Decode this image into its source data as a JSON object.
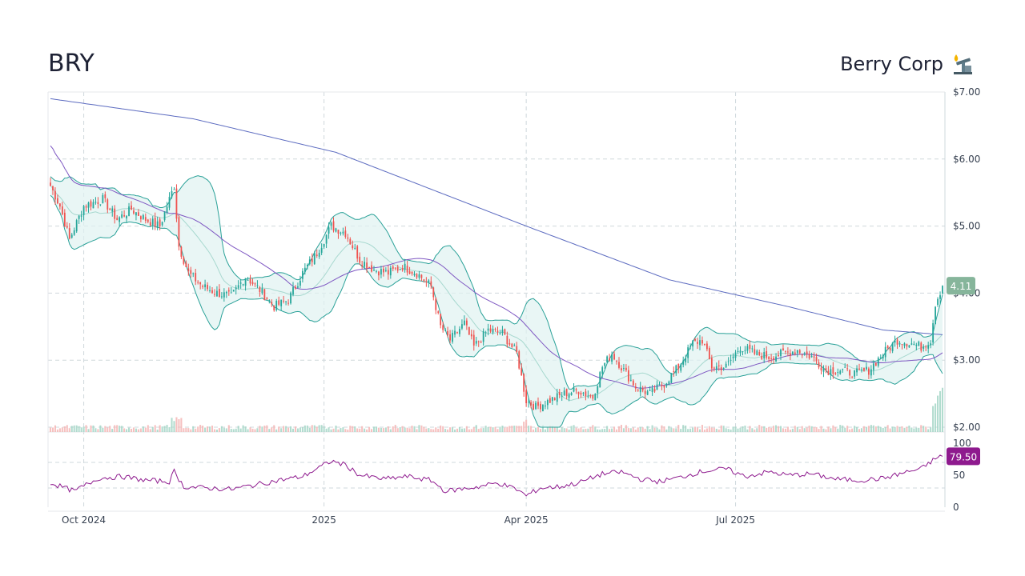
{
  "header": {
    "ticker": "BRY",
    "company": "Berry Corp",
    "company_icon": "oil-pump-icon"
  },
  "colors": {
    "up": "#26a69a",
    "down": "#ef5350",
    "band_line": "#2aa198",
    "band_fill": "#e0f2f1",
    "ma_fast": "#7e57c2",
    "ma_slow": "#5c6bc0",
    "rsi": "#8e1a8e",
    "grid": "#cfd8dc",
    "price_badge": "#86b59b",
    "rsi_badge": "#8e1a8e"
  },
  "chart_data": {
    "type": "candlestick",
    "x_axis": {
      "tick_labels": [
        "Oct 2024",
        "2025",
        "Apr 2025",
        "Jul 2025"
      ]
    },
    "price_axis": {
      "ylim": [
        2.0,
        7.0
      ],
      "tick_labels": [
        "$7.00",
        "$6.00",
        "$5.00",
        "$4.00",
        "$3.00",
        "$2.00"
      ],
      "ticks": [
        7,
        6,
        5,
        4,
        3,
        2
      ]
    },
    "last_price_label": "4.11",
    "last_price": 4.11,
    "rsi_axis": {
      "ylim": [
        0,
        100
      ],
      "tick_labels": [
        "100",
        "50",
        "0"
      ],
      "ticks": [
        100,
        50,
        0
      ],
      "guides": [
        70,
        30
      ]
    },
    "last_rsi_label": "79.50",
    "last_rsi": 79.5,
    "close_anchors": [
      [
        0,
        5.6
      ],
      [
        4,
        5.3
      ],
      [
        8,
        4.8
      ],
      [
        14,
        5.3
      ],
      [
        22,
        5.4
      ],
      [
        28,
        5.1
      ],
      [
        34,
        5.25
      ],
      [
        40,
        5.1
      ],
      [
        46,
        5.0
      ],
      [
        52,
        5.6
      ],
      [
        54,
        4.7
      ],
      [
        58,
        4.3
      ],
      [
        64,
        4.1
      ],
      [
        70,
        4.0
      ],
      [
        76,
        3.95
      ],
      [
        82,
        4.25
      ],
      [
        88,
        4.05
      ],
      [
        94,
        3.8
      ],
      [
        100,
        3.9
      ],
      [
        106,
        4.3
      ],
      [
        112,
        4.6
      ],
      [
        118,
        5.0
      ],
      [
        124,
        4.9
      ],
      [
        130,
        4.5
      ],
      [
        136,
        4.35
      ],
      [
        142,
        4.3
      ],
      [
        148,
        4.4
      ],
      [
        154,
        4.3
      ],
      [
        160,
        4.1
      ],
      [
        164,
        3.5
      ],
      [
        168,
        3.3
      ],
      [
        174,
        3.55
      ],
      [
        178,
        3.2
      ],
      [
        184,
        3.45
      ],
      [
        190,
        3.4
      ],
      [
        196,
        3.1
      ],
      [
        200,
        2.4
      ],
      [
        204,
        2.3
      ],
      [
        210,
        2.4
      ],
      [
        216,
        2.5
      ],
      [
        222,
        2.55
      ],
      [
        228,
        2.45
      ],
      [
        232,
        2.9
      ],
      [
        236,
        3.1
      ],
      [
        240,
        2.9
      ],
      [
        246,
        2.6
      ],
      [
        252,
        2.5
      ],
      [
        258,
        2.65
      ],
      [
        264,
        2.9
      ],
      [
        270,
        3.25
      ],
      [
        274,
        3.3
      ],
      [
        278,
        2.9
      ],
      [
        284,
        2.9
      ],
      [
        290,
        3.2
      ],
      [
        296,
        3.1
      ],
      [
        302,
        3.05
      ],
      [
        308,
        3.1
      ],
      [
        314,
        3.15
      ],
      [
        320,
        3.05
      ],
      [
        326,
        2.85
      ],
      [
        332,
        2.85
      ],
      [
        338,
        2.8
      ],
      [
        344,
        2.85
      ],
      [
        350,
        3.1
      ],
      [
        356,
        3.3
      ],
      [
        362,
        3.25
      ],
      [
        366,
        3.2
      ],
      [
        370,
        3.3
      ],
      [
        372,
        3.85
      ],
      [
        375,
        4.11
      ]
    ],
    "rsi_anchors": [
      [
        0,
        38
      ],
      [
        10,
        25
      ],
      [
        20,
        45
      ],
      [
        30,
        48
      ],
      [
        40,
        42
      ],
      [
        50,
        40
      ],
      [
        52,
        56
      ],
      [
        56,
        32
      ],
      [
        66,
        30
      ],
      [
        76,
        28
      ],
      [
        86,
        35
      ],
      [
        96,
        42
      ],
      [
        106,
        48
      ],
      [
        112,
        60
      ],
      [
        118,
        72
      ],
      [
        124,
        66
      ],
      [
        130,
        50
      ],
      [
        140,
        44
      ],
      [
        150,
        48
      ],
      [
        160,
        42
      ],
      [
        166,
        25
      ],
      [
        172,
        28
      ],
      [
        180,
        32
      ],
      [
        188,
        38
      ],
      [
        196,
        28
      ],
      [
        200,
        18
      ],
      [
        206,
        30
      ],
      [
        214,
        32
      ],
      [
        222,
        38
      ],
      [
        232,
        52
      ],
      [
        240,
        55
      ],
      [
        248,
        44
      ],
      [
        256,
        40
      ],
      [
        264,
        46
      ],
      [
        274,
        56
      ],
      [
        284,
        60
      ],
      [
        292,
        48
      ],
      [
        302,
        55
      ],
      [
        310,
        50
      ],
      [
        320,
        52
      ],
      [
        330,
        44
      ],
      [
        340,
        42
      ],
      [
        350,
        45
      ],
      [
        360,
        55
      ],
      [
        366,
        60
      ],
      [
        372,
        76
      ],
      [
        375,
        79.5
      ]
    ]
  }
}
